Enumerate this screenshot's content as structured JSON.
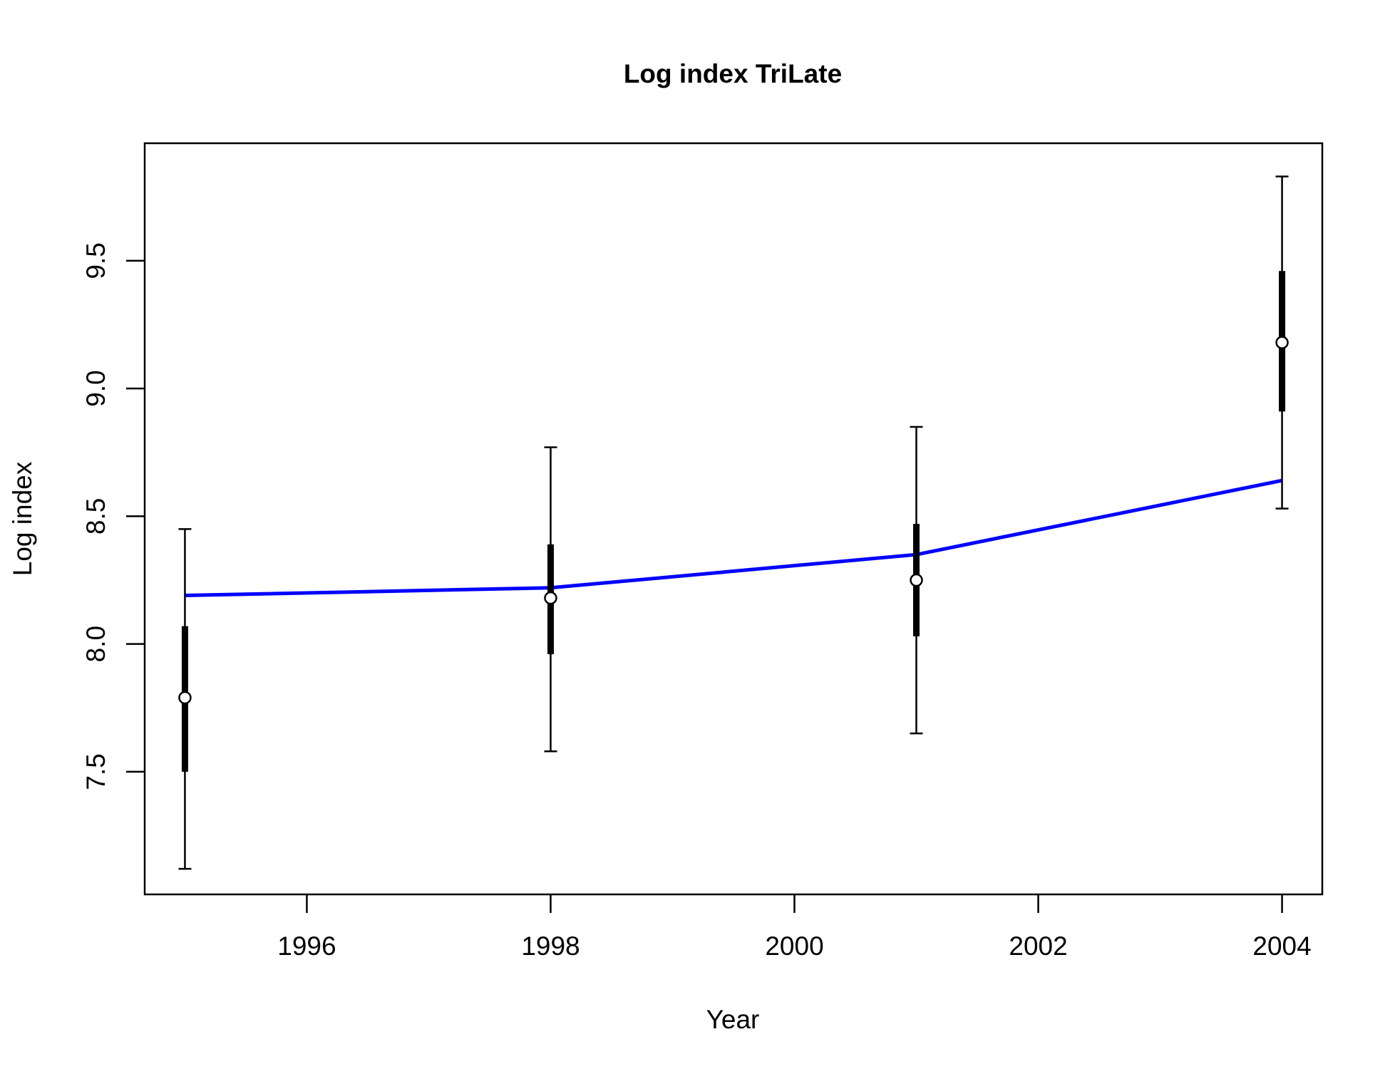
{
  "chart_data": {
    "type": "line",
    "title": "Log index TriLate",
    "xlabel": "Year",
    "ylabel": "Log index",
    "xlim": [
      1994.67,
      2004.33
    ],
    "ylim": [
      7.02,
      9.96
    ],
    "x_ticks": [
      "1996",
      "1998",
      "2000",
      "2002",
      "2004"
    ],
    "y_ticks": [
      "7.5",
      "8.0",
      "8.5",
      "9.0",
      "9.5"
    ],
    "grid": false,
    "series": [
      {
        "style": "points with error bars",
        "x": [
          1995,
          1998,
          2001,
          2004
        ],
        "values": [
          7.79,
          8.18,
          8.25,
          9.18
        ],
        "inner_interval": [
          [
            7.5,
            8.07
          ],
          [
            7.96,
            8.39
          ],
          [
            8.03,
            8.47
          ],
          [
            8.91,
            9.46
          ]
        ],
        "outer_interval": [
          [
            7.12,
            8.45
          ],
          [
            7.58,
            8.77
          ],
          [
            7.65,
            8.85
          ],
          [
            8.53,
            9.83
          ]
        ]
      },
      {
        "style": "fitted line",
        "color": "#0000ff",
        "x": [
          1995,
          1998,
          2001,
          2004
        ],
        "values": [
          8.19,
          8.22,
          8.35,
          8.64
        ]
      }
    ]
  }
}
